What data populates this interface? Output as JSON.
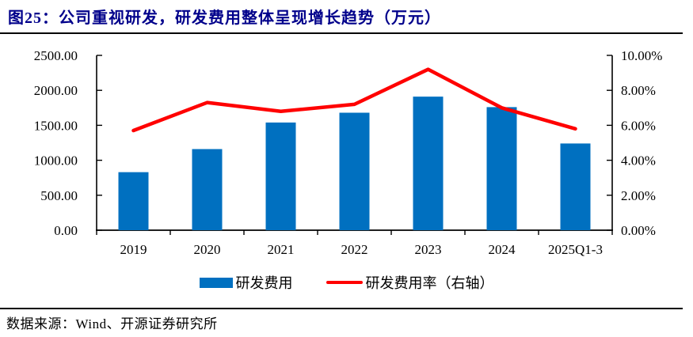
{
  "colors": {
    "title": "#00008B",
    "bar": "#0070C0",
    "line": "#FF0000",
    "axis": "#000000"
  },
  "source": {
    "text": "数据来源：Wind、开源证券研究所"
  },
  "chart_data": {
    "type": "bar",
    "title": "图25：公司重视研发，研发费用整体呈现增长趋势（万元）",
    "categories": [
      "2019",
      "2020",
      "2021",
      "2022",
      "2023",
      "2024",
      "2025Q1-3"
    ],
    "series": [
      {
        "name": "研发费用",
        "type": "bar",
        "axis": "left",
        "color": "#0070C0",
        "values": [
          830,
          1160,
          1540,
          1680,
          1910,
          1760,
          1240
        ]
      },
      {
        "name": "研发费用率（右轴）",
        "type": "line",
        "axis": "right",
        "color": "#FF0000",
        "values": [
          5.7,
          7.3,
          6.8,
          7.2,
          9.2,
          7.0,
          5.8
        ]
      }
    ],
    "left_axis": {
      "min": 0,
      "max": 2500,
      "step": 500,
      "tick_labels": [
        "0.00",
        "500.00",
        "1000.00",
        "1500.00",
        "2000.00",
        "2500.00"
      ]
    },
    "right_axis": {
      "min": 0,
      "max": 10,
      "step": 2,
      "tick_labels": [
        "0.00%",
        "2.00%",
        "4.00%",
        "6.00%",
        "8.00%",
        "10.00%"
      ]
    },
    "grid": false,
    "legend_position": "bottom"
  }
}
